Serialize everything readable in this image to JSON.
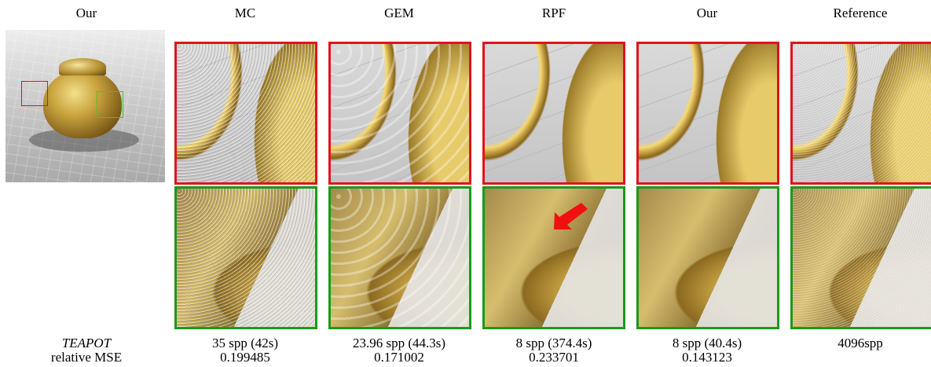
{
  "header": {
    "columns": [
      "Our",
      "MC",
      "GEM",
      "RPF",
      "Our",
      "Reference"
    ]
  },
  "caption": {
    "scene": "TEAPOT",
    "metric": "relative MSE",
    "methods": [
      {
        "samples": "35 spp (42s)",
        "mse": 0.199485
      },
      {
        "samples": "23.96 spp (44.3s)",
        "mse": 0.171002
      },
      {
        "samples": "8 spp (374.4s)",
        "mse": 0.233701
      },
      {
        "samples": "8 spp (40.4s)",
        "mse": 0.143123
      },
      {
        "samples": "4096spp"
      }
    ]
  }
}
